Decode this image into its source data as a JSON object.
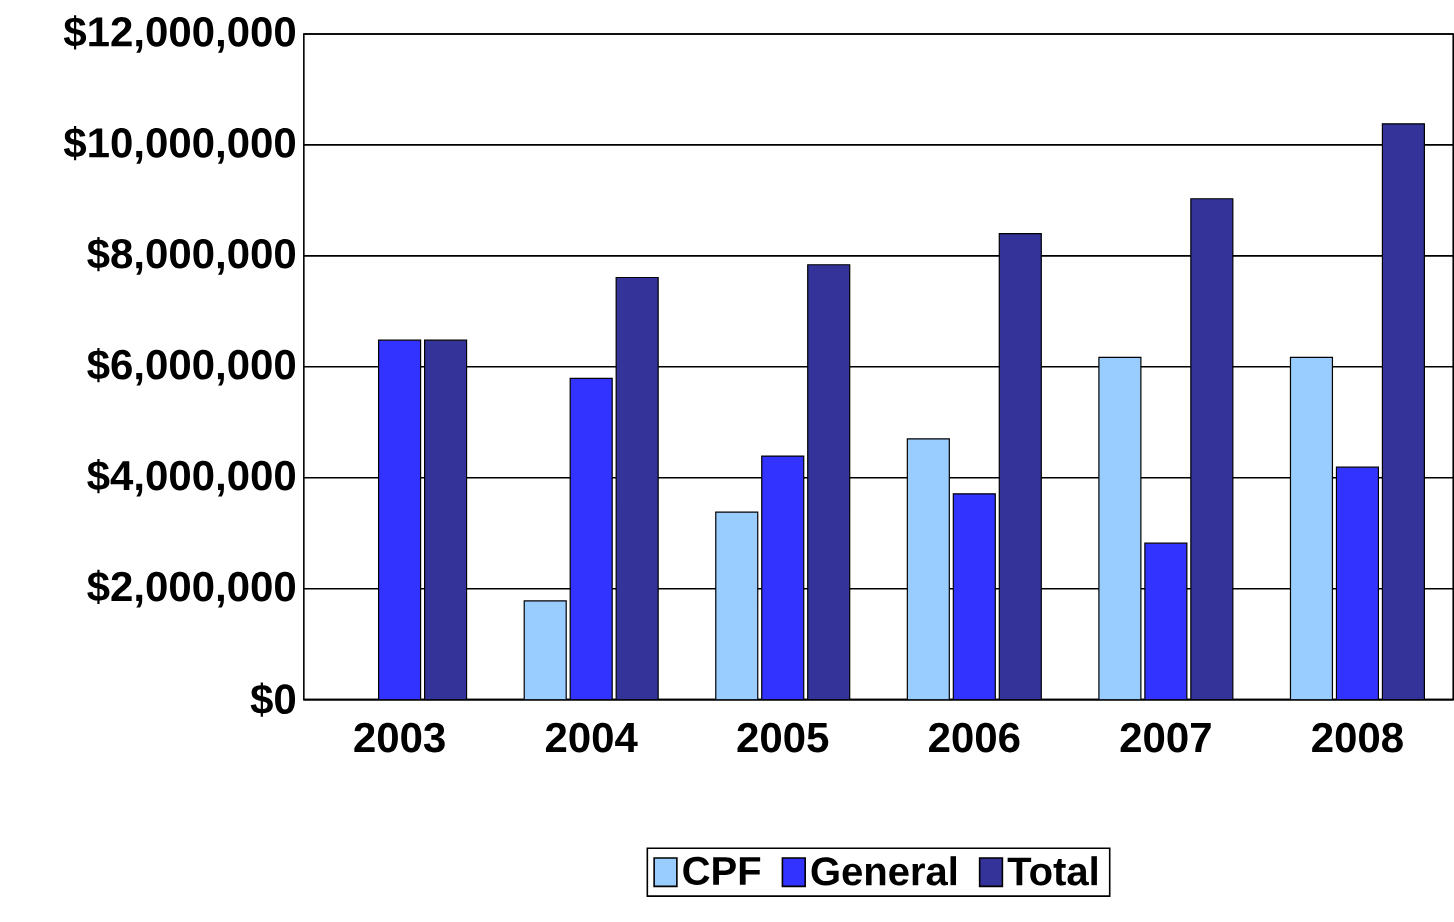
{
  "chart_data": {
    "type": "bar",
    "categories": [
      "2003",
      "2004",
      "2005",
      "2006",
      "2007",
      "2008"
    ],
    "series": [
      {
        "name": "CPF",
        "color": "#99ccff",
        "values": [
          0,
          1780000,
          3380000,
          4700000,
          6170000,
          6170000
        ]
      },
      {
        "name": "General",
        "color": "#3333ff",
        "values": [
          6480000,
          5790000,
          4390000,
          3710000,
          2820000,
          4190000
        ]
      },
      {
        "name": "Total",
        "color": "#333399",
        "values": [
          6480000,
          7610000,
          7840000,
          8400000,
          9030000,
          10380000
        ]
      }
    ],
    "ylim": [
      0,
      12000000
    ],
    "yticks": [
      {
        "value": 0,
        "label": "$0"
      },
      {
        "value": 2000000,
        "label": "$2,000,000"
      },
      {
        "value": 4000000,
        "label": "$4,000,000"
      },
      {
        "value": 6000000,
        "label": "$6,000,000"
      },
      {
        "value": 8000000,
        "label": "$8,000,000"
      },
      {
        "value": 10000000,
        "label": "$10,000,000"
      },
      {
        "value": 12000000,
        "label": "$12,000,000"
      }
    ],
    "grid": "y",
    "legend": "bottom"
  }
}
